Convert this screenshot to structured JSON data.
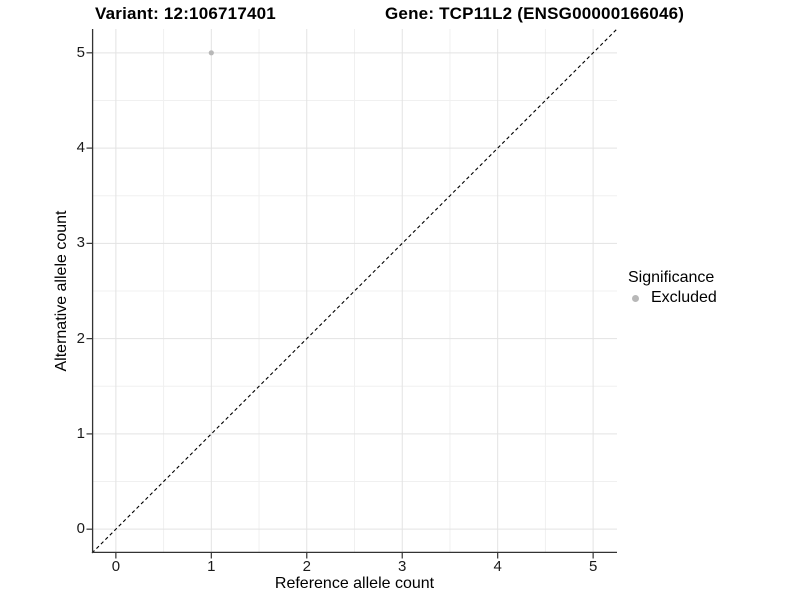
{
  "titles": {
    "variant": "Variant: 12:106717401",
    "gene": "Gene: TCP11L2 (ENSG00000166046)"
  },
  "axes": {
    "x_label": "Reference allele count",
    "y_label": "Alternative allele count"
  },
  "legend": {
    "title": "Significance",
    "items": [
      {
        "label": "Excluded",
        "color": "#b8b8b8"
      }
    ]
  },
  "style": {
    "background": "#ffffff",
    "gridline_major": "#e3e3e3",
    "gridline_minor": "#f0f0f0",
    "axis_line": "#333333",
    "tick_mark": "#333333",
    "tick_text": "#1a1a1a",
    "title_text": "#000000",
    "reference_line": "#000000",
    "point": "#b8b8b8"
  },
  "chart_data": {
    "type": "scatter",
    "titles": [
      "Variant: 12:106717401",
      "Gene: TCP11L2 (ENSG00000166046)"
    ],
    "xlabel": "Reference allele count",
    "ylabel": "Alternative allele count",
    "xlim": [
      -0.25,
      5.25
    ],
    "ylim": [
      -0.25,
      5.25
    ],
    "x_ticks": [
      0,
      1,
      2,
      3,
      4,
      5
    ],
    "y_ticks": [
      0,
      1,
      2,
      3,
      4,
      5
    ],
    "minor_gridline_step": 0.5,
    "grid": "major+minor",
    "legend_position": "right",
    "legend_title": "Significance",
    "series": [
      {
        "name": "Excluded",
        "color": "#b8b8b8",
        "points": [
          {
            "x": 1,
            "y": 5
          }
        ]
      }
    ],
    "reference_line": {
      "kind": "y=x",
      "from": [
        -0.25,
        -0.25
      ],
      "to": [
        5.25,
        5.25
      ],
      "style": "dashed",
      "color": "#000000"
    }
  }
}
